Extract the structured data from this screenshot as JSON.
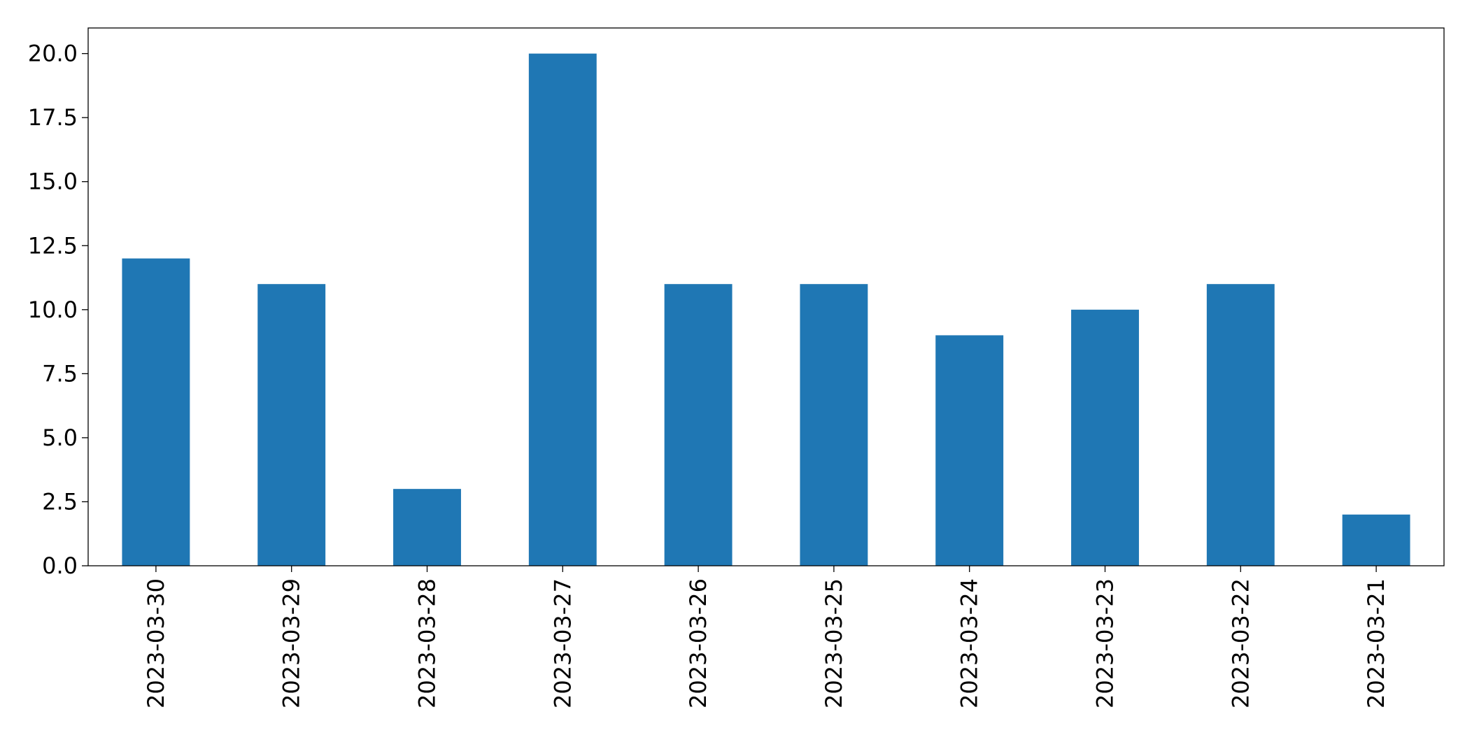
{
  "chart_data": {
    "type": "bar",
    "categories": [
      "2023-03-30",
      "2023-03-29",
      "2023-03-28",
      "2023-03-27",
      "2023-03-26",
      "2023-03-25",
      "2023-03-24",
      "2023-03-23",
      "2023-03-22",
      "2023-03-21"
    ],
    "values": [
      12,
      11,
      3,
      20,
      11,
      11,
      9,
      10,
      11,
      2
    ],
    "color": "#1f77b4",
    "ylim": [
      0,
      21
    ],
    "yticks": [
      {
        "value": 0,
        "label": "0.0"
      },
      {
        "value": 2.5,
        "label": "2.5"
      },
      {
        "value": 5,
        "label": "5.0"
      },
      {
        "value": 7.5,
        "label": "7.5"
      },
      {
        "value": 10,
        "label": "10.0"
      },
      {
        "value": 12.5,
        "label": "12.5"
      },
      {
        "value": 15,
        "label": "15.0"
      },
      {
        "value": 17.5,
        "label": "17.5"
      },
      {
        "value": 20,
        "label": "20.0"
      }
    ],
    "grid": false
  }
}
